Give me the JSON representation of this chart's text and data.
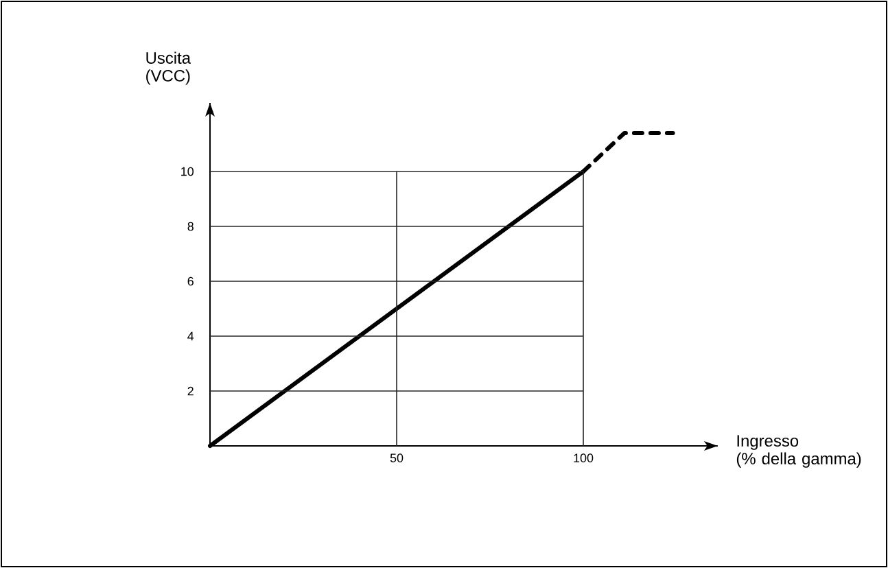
{
  "chart_data": {
    "type": "line",
    "xlabel": "Ingresso\n(% della gamma)",
    "ylabel": "Uscita\n(VCC)",
    "series": [
      {
        "x": [
          100,
          111,
          124
        ],
        "values": [
          10,
          11.4,
          11.4
        ],
        "color": "#000000",
        "line_style": "dashed"
      },
      {
        "x": [
          0,
          100
        ],
        "values": [
          0,
          10
        ],
        "color": "#000000",
        "line_style": "solid"
      }
    ],
    "xlim": [
      0,
      136
    ],
    "ylim": [
      0,
      12.5
    ],
    "xticks": [
      50,
      100
    ],
    "yticks": [
      2,
      4,
      6,
      8,
      10
    ],
    "grid": true,
    "marker": "none"
  }
}
